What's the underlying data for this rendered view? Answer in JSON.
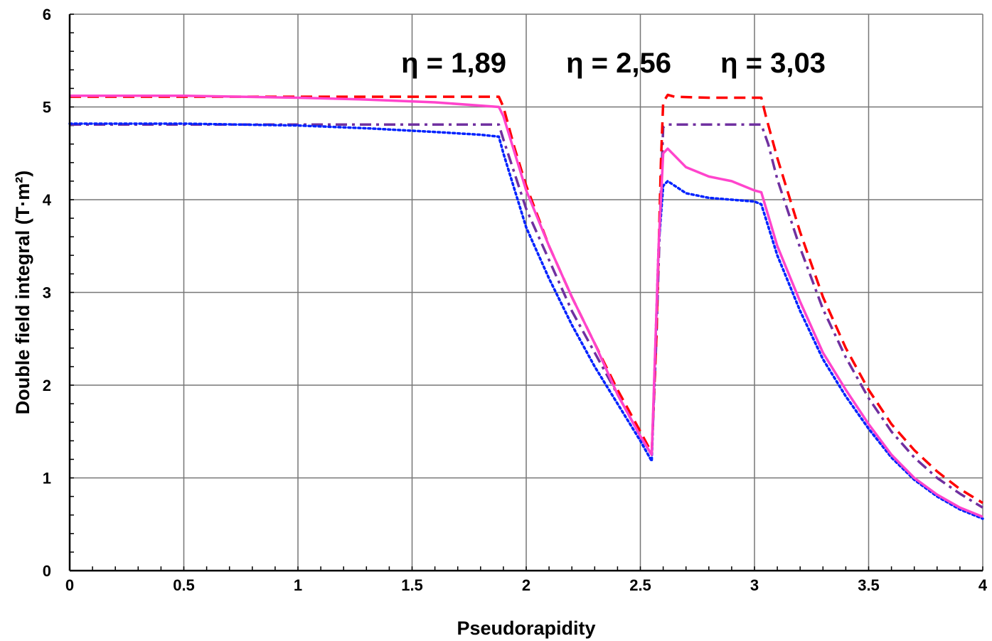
{
  "chart_data": {
    "type": "line",
    "xlabel": "Pseudorapidity",
    "ylabel": "Double field integral (T·m²)",
    "xlim": [
      0,
      4
    ],
    "ylim": [
      0,
      6
    ],
    "grid": true,
    "xticks": [
      "0",
      "0.5",
      "1",
      "1.5",
      "2",
      "2.5",
      "3",
      "3.5",
      "4"
    ],
    "yticks": [
      "0",
      "1",
      "2",
      "3",
      "4",
      "5",
      "6"
    ],
    "annotations": [
      {
        "text": "η = 1,89",
        "x": 1.89
      },
      {
        "text": "η = 2,56",
        "x": 2.56
      },
      {
        "text": "η = 3,03",
        "x": 3.03
      }
    ],
    "series": [
      {
        "style": "dashed",
        "color": "#ff0000",
        "points": [
          [
            0,
            5.11
          ],
          [
            0.5,
            5.11
          ],
          [
            1,
            5.11
          ],
          [
            1.5,
            5.11
          ],
          [
            1.88,
            5.11
          ],
          [
            1.9,
            5.0
          ],
          [
            1.95,
            4.55
          ],
          [
            2.0,
            4.15
          ],
          [
            2.1,
            3.5
          ],
          [
            2.2,
            2.95
          ],
          [
            2.3,
            2.45
          ],
          [
            2.4,
            1.95
          ],
          [
            2.5,
            1.5
          ],
          [
            2.55,
            1.27
          ],
          [
            2.57,
            2.5
          ],
          [
            2.59,
            4.4
          ],
          [
            2.6,
            5.05
          ],
          [
            2.62,
            5.13
          ],
          [
            2.65,
            5.11
          ],
          [
            2.8,
            5.1
          ],
          [
            3.0,
            5.1
          ],
          [
            3.03,
            5.1
          ],
          [
            3.05,
            4.9
          ],
          [
            3.1,
            4.45
          ],
          [
            3.2,
            3.65
          ],
          [
            3.3,
            2.95
          ],
          [
            3.4,
            2.4
          ],
          [
            3.5,
            1.95
          ],
          [
            3.6,
            1.58
          ],
          [
            3.7,
            1.3
          ],
          [
            3.8,
            1.07
          ],
          [
            3.9,
            0.88
          ],
          [
            4.0,
            0.73
          ]
        ]
      },
      {
        "style": "solid",
        "color": "#ff44cc",
        "points": [
          [
            0,
            5.12
          ],
          [
            0.5,
            5.12
          ],
          [
            1,
            5.1
          ],
          [
            1.3,
            5.08
          ],
          [
            1.6,
            5.05
          ],
          [
            1.88,
            5.0
          ],
          [
            1.9,
            4.9
          ],
          [
            2.0,
            4.1
          ],
          [
            2.1,
            3.5
          ],
          [
            2.2,
            2.95
          ],
          [
            2.3,
            2.45
          ],
          [
            2.4,
            1.9
          ],
          [
            2.5,
            1.45
          ],
          [
            2.55,
            1.25
          ],
          [
            2.58,
            3.5
          ],
          [
            2.6,
            4.5
          ],
          [
            2.62,
            4.55
          ],
          [
            2.7,
            4.35
          ],
          [
            2.8,
            4.25
          ],
          [
            2.9,
            4.2
          ],
          [
            3.0,
            4.1
          ],
          [
            3.03,
            4.08
          ],
          [
            3.1,
            3.5
          ],
          [
            3.2,
            2.9
          ],
          [
            3.3,
            2.35
          ],
          [
            3.4,
            1.95
          ],
          [
            3.5,
            1.58
          ],
          [
            3.6,
            1.25
          ],
          [
            3.7,
            1.0
          ],
          [
            3.8,
            0.82
          ],
          [
            3.9,
            0.68
          ],
          [
            4.0,
            0.58
          ]
        ]
      },
      {
        "style": "dotted",
        "color": "#0022ff",
        "points": [
          [
            0,
            4.82
          ],
          [
            0.5,
            4.82
          ],
          [
            1,
            4.8
          ],
          [
            1.3,
            4.77
          ],
          [
            1.6,
            4.73
          ],
          [
            1.8,
            4.7
          ],
          [
            1.88,
            4.68
          ],
          [
            1.9,
            4.5
          ],
          [
            2.0,
            3.7
          ],
          [
            2.1,
            3.15
          ],
          [
            2.2,
            2.65
          ],
          [
            2.3,
            2.2
          ],
          [
            2.4,
            1.8
          ],
          [
            2.5,
            1.4
          ],
          [
            2.55,
            1.18
          ],
          [
            2.58,
            3.5
          ],
          [
            2.6,
            4.15
          ],
          [
            2.62,
            4.2
          ],
          [
            2.7,
            4.07
          ],
          [
            2.8,
            4.02
          ],
          [
            2.9,
            4.0
          ],
          [
            3.0,
            3.98
          ],
          [
            3.03,
            3.95
          ],
          [
            3.1,
            3.4
          ],
          [
            3.2,
            2.8
          ],
          [
            3.3,
            2.28
          ],
          [
            3.4,
            1.88
          ],
          [
            3.5,
            1.53
          ],
          [
            3.6,
            1.22
          ],
          [
            3.7,
            0.98
          ],
          [
            3.8,
            0.8
          ],
          [
            3.9,
            0.66
          ],
          [
            4.0,
            0.56
          ]
        ]
      },
      {
        "style": "dashdot",
        "color": "#7030a0",
        "points": [
          [
            0,
            4.81
          ],
          [
            0.5,
            4.81
          ],
          [
            1,
            4.81
          ],
          [
            1.5,
            4.81
          ],
          [
            1.88,
            4.81
          ],
          [
            1.9,
            4.65
          ],
          [
            2.0,
            3.9
          ],
          [
            2.1,
            3.35
          ],
          [
            2.2,
            2.8
          ],
          [
            2.3,
            2.35
          ],
          [
            2.4,
            1.9
          ],
          [
            2.5,
            1.45
          ],
          [
            2.55,
            1.25
          ],
          [
            2.57,
            2.5
          ],
          [
            2.59,
            4.1
          ],
          [
            2.6,
            4.78
          ],
          [
            2.62,
            4.81
          ],
          [
            2.8,
            4.81
          ],
          [
            3.0,
            4.81
          ],
          [
            3.03,
            4.81
          ],
          [
            3.06,
            4.6
          ],
          [
            3.1,
            4.22
          ],
          [
            3.2,
            3.48
          ],
          [
            3.3,
            2.82
          ],
          [
            3.4,
            2.3
          ],
          [
            3.5,
            1.86
          ],
          [
            3.6,
            1.5
          ],
          [
            3.7,
            1.22
          ],
          [
            3.8,
            1.0
          ],
          [
            3.9,
            0.83
          ],
          [
            4.0,
            0.68
          ]
        ]
      }
    ]
  }
}
